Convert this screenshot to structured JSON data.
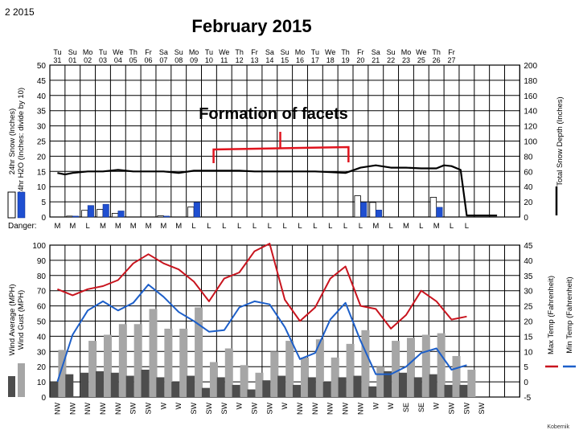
{
  "header": {
    "page_label": "2   2015",
    "title": "February 2015"
  },
  "credit": "Kobernik",
  "chart_data": [
    {
      "type": "bar",
      "panel": "snow",
      "annotation": "Formation of facets",
      "days": [
        {
          "dow": "Tu",
          "date": "31"
        },
        {
          "dow": "Su",
          "date": "01"
        },
        {
          "dow": "Mo",
          "date": "02"
        },
        {
          "dow": "Tu",
          "date": "03"
        },
        {
          "dow": "We",
          "date": "04"
        },
        {
          "dow": "Th",
          "date": "05"
        },
        {
          "dow": "Fr",
          "date": "06"
        },
        {
          "dow": "Sa",
          "date": "07"
        },
        {
          "dow": "Su",
          "date": "08"
        },
        {
          "dow": "Mo",
          "date": "09"
        },
        {
          "dow": "Tu",
          "date": "10"
        },
        {
          "dow": "We",
          "date": "11"
        },
        {
          "dow": "Th",
          "date": "12"
        },
        {
          "dow": "Fr",
          "date": "13"
        },
        {
          "dow": "Sa",
          "date": "14"
        },
        {
          "dow": "Su",
          "date": "15"
        },
        {
          "dow": "Mo",
          "date": "16"
        },
        {
          "dow": "Tu",
          "date": "17"
        },
        {
          "dow": "We",
          "date": "18"
        },
        {
          "dow": "Th",
          "date": "19"
        },
        {
          "dow": "Fr",
          "date": "20"
        },
        {
          "dow": "Sa",
          "date": "21"
        },
        {
          "dow": "Su",
          "date": "22"
        },
        {
          "dow": "Mo",
          "date": "23"
        },
        {
          "dow": "We",
          "date": "25"
        },
        {
          "dow": "Th",
          "date": "26"
        },
        {
          "dow": "Fr",
          "date": "27"
        }
      ],
      "ylabel_left": [
        "24hr Snow (Inches)",
        "24hr H2O (Inches: divide by 10)"
      ],
      "ylabel_right": "Total Snow Depth (Inches)",
      "y_left": {
        "min": 0,
        "max": 50,
        "ticks": [
          0,
          5,
          10,
          15,
          20,
          25,
          30,
          35,
          40,
          45,
          50
        ]
      },
      "y_right": {
        "min": 0,
        "max": 200,
        "ticks": [
          0,
          20,
          40,
          60,
          80,
          100,
          120,
          140,
          160,
          180,
          200
        ]
      },
      "series": [
        {
          "name": "24hr Snow (Inches)",
          "color": "#ffffff",
          "values": [
            0,
            0.3,
            2.2,
            2.5,
            1.2,
            0,
            0,
            0.4,
            0,
            3.3,
            0,
            0,
            0,
            0,
            0,
            0,
            0,
            0,
            0,
            0,
            7,
            4.8,
            0,
            0,
            0,
            6.5,
            0
          ]
        },
        {
          "name": "24hr H2O (Inches: divide by 10)",
          "color": "#1f4fd1",
          "values": [
            0,
            0.3,
            3.8,
            4.2,
            2,
            0,
            0,
            0.3,
            0,
            4.8,
            0,
            0,
            0,
            0,
            0,
            0,
            0,
            0,
            0,
            0,
            4.8,
            2.3,
            0,
            0,
            0,
            3.2,
            0
          ]
        },
        {
          "name": "Total Snow Depth (Inches)",
          "color": "#000000",
          "axis": "right",
          "x": [
            0,
            0.5,
            1,
            2,
            3,
            4,
            5,
            6,
            7,
            8,
            9,
            10,
            11,
            12,
            13,
            14,
            15,
            16,
            17,
            18,
            19,
            20,
            21,
            22,
            23,
            24,
            25,
            25.5,
            26,
            26.6,
            27,
            28,
            29
          ],
          "values": [
            58,
            56,
            58,
            60,
            60,
            62,
            60,
            60,
            60,
            58,
            61,
            61,
            61,
            61,
            60,
            60,
            60,
            60,
            60,
            59,
            58,
            65,
            68,
            65,
            65,
            64,
            64,
            68,
            67,
            62,
            2,
            2,
            2
          ]
        }
      ],
      "danger": {
        "label": "Danger:",
        "values": [
          "M",
          "M",
          "L",
          "M",
          "M",
          "M",
          "M",
          "M",
          "M",
          "L",
          "L",
          "L",
          "L",
          "L",
          "L",
          "L",
          "L",
          "L",
          "L",
          "L",
          "L",
          "M",
          "L",
          "M",
          "L",
          "M",
          "L",
          "L"
        ]
      }
    },
    {
      "type": "bar",
      "panel": "wind_temp",
      "ylabel_left": [
        "Wind Average (MPH)",
        "Wind Gust (MPH)"
      ],
      "ylabel_right": [
        "Max Temp (Fahrenheit)",
        "Min Temp (Fahrenheit)"
      ],
      "y_left": {
        "min": 0,
        "max": 100,
        "ticks": [
          0,
          10,
          20,
          30,
          40,
          50,
          60,
          70,
          80,
          90,
          100
        ]
      },
      "y_right": {
        "min": -5,
        "max": 45,
        "ticks": [
          -5,
          0,
          5,
          10,
          15,
          20,
          25,
          30,
          35,
          40,
          45
        ]
      },
      "wind_dir": [
        "NW",
        "NW",
        "NW",
        "NW",
        "NW",
        "SW",
        "SW",
        "W",
        "W",
        "SW",
        "SW",
        "SW",
        "W",
        "SW",
        "SW",
        "W",
        "NW",
        "NW",
        "NW",
        "NW",
        "NW",
        "W",
        "W",
        "SE",
        "SE",
        "W",
        "SW",
        "SW",
        "SW"
      ],
      "series": [
        {
          "name": "Wind Gust (MPH)",
          "color": "#a6a6a6",
          "values": [
            31,
            0,
            37,
            41,
            48,
            48,
            58,
            45,
            45,
            59,
            23,
            32,
            21,
            16,
            30,
            37,
            26,
            38,
            26,
            35,
            44,
            20,
            37,
            39,
            41,
            42,
            27,
            18,
            0,
            0,
            0
          ]
        },
        {
          "name": "Wind Average (MPH)",
          "color": "#4d4d4d",
          "values": [
            10,
            15,
            16,
            17,
            16,
            14,
            18,
            13,
            10,
            14,
            6,
            13,
            8,
            5,
            11,
            14,
            8,
            13,
            10,
            13,
            14,
            7,
            17,
            16,
            13,
            15,
            8,
            8,
            0,
            0,
            0
          ]
        },
        {
          "name": "Max Temp (Fahrenheit)",
          "color": "#c8141e",
          "values": [
            30.5,
            28.5,
            30.5,
            31.5,
            33.5,
            39,
            42,
            39,
            37,
            33,
            26.5,
            34,
            36,
            43,
            45.5,
            27,
            20,
            24.5,
            34,
            38,
            25,
            24,
            17.5,
            22,
            30,
            26.5,
            20.5,
            21.5
          ]
        },
        {
          "name": "Min Temp (Fahrenheit)",
          "color": "#1d5fc9",
          "values": [
            0,
            15.5,
            23.5,
            26.5,
            23.5,
            26,
            32,
            28,
            23,
            20,
            16.5,
            17,
            24.5,
            26.5,
            25.5,
            18,
            7.5,
            9.5,
            20.5,
            26,
            13.5,
            2.5,
            2.5,
            5,
            9.5,
            11,
            4,
            5.5
          ]
        }
      ]
    }
  ]
}
